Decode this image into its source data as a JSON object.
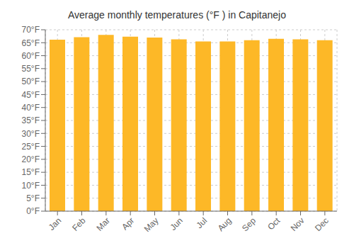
{
  "chart_data": {
    "type": "bar",
    "title": "Average monthly temperatures (°F ) in Capitanejo",
    "categories": [
      "Jan",
      "Feb",
      "Mar",
      "Apr",
      "May",
      "Jun",
      "Jul",
      "Aug",
      "Sep",
      "Oct",
      "Nov",
      "Dec"
    ],
    "values": [
      66.2,
      67.1,
      68.0,
      67.3,
      67.0,
      66.3,
      65.5,
      65.5,
      66.0,
      66.5,
      66.3,
      66.0
    ],
    "color": "#FDB827",
    "ylim": [
      0,
      70
    ],
    "yticks": [
      {
        "value": 0,
        "label": "0°F"
      },
      {
        "value": 5,
        "label": "5°F"
      },
      {
        "value": 10,
        "label": "10°F"
      },
      {
        "value": 15,
        "label": "15°F"
      },
      {
        "value": 20,
        "label": "20°F"
      },
      {
        "value": 25,
        "label": "25°F"
      },
      {
        "value": 30,
        "label": "30°F"
      },
      {
        "value": 35,
        "label": "35°F"
      },
      {
        "value": 40,
        "label": "40°F"
      },
      {
        "value": 45,
        "label": "45°F"
      },
      {
        "value": 50,
        "label": "50°F"
      },
      {
        "value": 55,
        "label": "55°F"
      },
      {
        "value": 60,
        "label": "60°F"
      },
      {
        "value": 65,
        "label": "65°F"
      },
      {
        "value": 70,
        "label": "70°F"
      }
    ],
    "grid": true
  }
}
